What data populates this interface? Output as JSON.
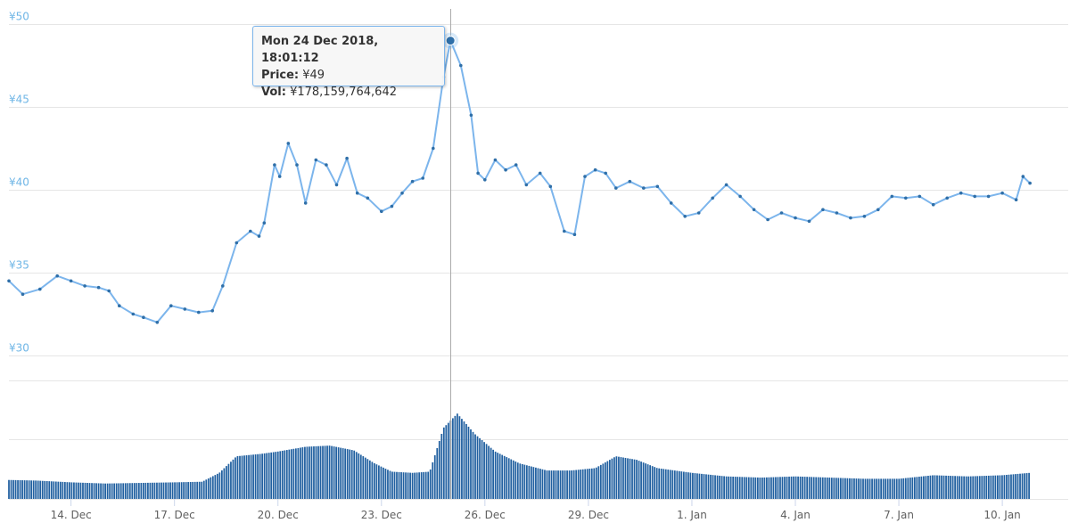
{
  "chart_data": {
    "type": "line",
    "price_axis": {
      "ticks": [
        "¥30",
        "¥35",
        "¥40",
        "¥45",
        "¥50"
      ],
      "tick_values": [
        30,
        35,
        40,
        45,
        50
      ],
      "ylim": [
        30,
        50
      ]
    },
    "x_ticks": [
      "14. Dec",
      "17. Dec",
      "20. Dec",
      "23. Dec",
      "26. Dec",
      "29. Dec",
      "1. Jan",
      "4. Jan",
      "7. Jan",
      "10. Jan"
    ],
    "x_tick_days": [
      14,
      17,
      20,
      23,
      26,
      29,
      32,
      35,
      38,
      41
    ],
    "xlim_days": [
      12.2,
      42.6
    ],
    "grid": true,
    "price_series": {
      "x_days": [
        12.2,
        12.6,
        13.1,
        13.6,
        14.0,
        14.4,
        14.8,
        15.1,
        15.4,
        15.8,
        16.1,
        16.5,
        16.9,
        17.3,
        17.7,
        18.1,
        18.4,
        18.8,
        19.2,
        19.45,
        19.6,
        19.9,
        20.05,
        20.3,
        20.55,
        20.8,
        21.1,
        21.4,
        21.7,
        22.0,
        22.3,
        22.6,
        23.0,
        23.3,
        23.6,
        23.9,
        24.2,
        24.5,
        24.8,
        25.0,
        25.3,
        25.6,
        25.8,
        26.0,
        26.3,
        26.6,
        26.9,
        27.2,
        27.6,
        27.9,
        28.3,
        28.6,
        28.9,
        29.2,
        29.5,
        29.8,
        30.2,
        30.6,
        31.0,
        31.4,
        31.8,
        32.2,
        32.6,
        33.0,
        33.4,
        33.8,
        34.2,
        34.6,
        35.0,
        35.4,
        35.8,
        36.2,
        36.6,
        37.0,
        37.4,
        37.8,
        38.2,
        38.6,
        39.0,
        39.4,
        39.8,
        40.2,
        40.6,
        41.0,
        41.4,
        41.6,
        41.8
      ],
      "values": [
        34.5,
        33.7,
        34.0,
        34.8,
        34.5,
        34.2,
        34.1,
        33.9,
        33.0,
        32.5,
        32.3,
        32.0,
        33.0,
        32.8,
        32.6,
        32.7,
        34.2,
        36.8,
        37.5,
        37.2,
        38.0,
        41.5,
        40.8,
        42.8,
        41.5,
        39.2,
        41.8,
        41.5,
        40.3,
        41.9,
        39.8,
        39.5,
        38.7,
        39.0,
        39.8,
        40.5,
        40.7,
        42.5,
        46.8,
        49.0,
        47.5,
        44.5,
        41.0,
        40.6,
        41.8,
        41.2,
        41.5,
        40.3,
        41.0,
        40.2,
        37.5,
        37.3,
        40.8,
        41.2,
        41.0,
        40.1,
        40.5,
        40.1,
        40.2,
        39.2,
        38.4,
        38.6,
        39.5,
        40.3,
        39.6,
        38.8,
        38.2,
        38.6,
        38.3,
        38.1,
        38.8,
        38.6,
        38.3,
        38.4,
        38.8,
        39.6,
        39.5,
        39.6,
        39.1,
        39.5,
        39.8,
        39.6,
        39.6,
        39.8,
        39.4,
        40.8,
        40.4
      ]
    },
    "volume_series": {
      "x_days": [
        12.2,
        13.0,
        14.0,
        15.0,
        16.0,
        17.0,
        17.8,
        18.3,
        18.8,
        19.5,
        20.0,
        20.8,
        21.5,
        22.2,
        22.8,
        23.3,
        23.9,
        24.4,
        24.8,
        25.2,
        25.7,
        26.3,
        27.0,
        27.8,
        28.5,
        29.2,
        29.8,
        30.4,
        31.0,
        31.5,
        32.0,
        33.0,
        34.0,
        35.0,
        36.0,
        37.0,
        38.0,
        39.0,
        40.0,
        41.0,
        41.8
      ],
      "values": [
        16,
        15.5,
        14,
        13,
        13.5,
        14,
        14.5,
        22,
        36,
        38,
        40,
        44,
        45,
        41,
        30,
        23,
        22,
        23,
        60,
        72,
        55,
        40,
        30,
        24,
        24,
        26,
        36,
        33,
        26,
        24,
        22,
        19,
        18,
        19,
        18,
        17,
        17,
        20,
        19,
        20,
        22
      ],
      "ylim": [
        0,
        100
      ]
    },
    "tooltip": {
      "title": "Mon 24 Dec 2018, 18:01:12",
      "price_label": "Price:",
      "price_value": "¥49",
      "vol_label": "Vol:",
      "vol_value": "¥178,159,764,642",
      "x_day": 25.0,
      "price": 49
    },
    "colors": {
      "line": "#7cb5ec",
      "markers": "#2f6fa8",
      "volume": "#2160a0",
      "grid": "#e6e6e6",
      "crosshair": "#aaaaaa",
      "y_labels": "#6fb6e6",
      "x_labels": "#606060"
    }
  }
}
